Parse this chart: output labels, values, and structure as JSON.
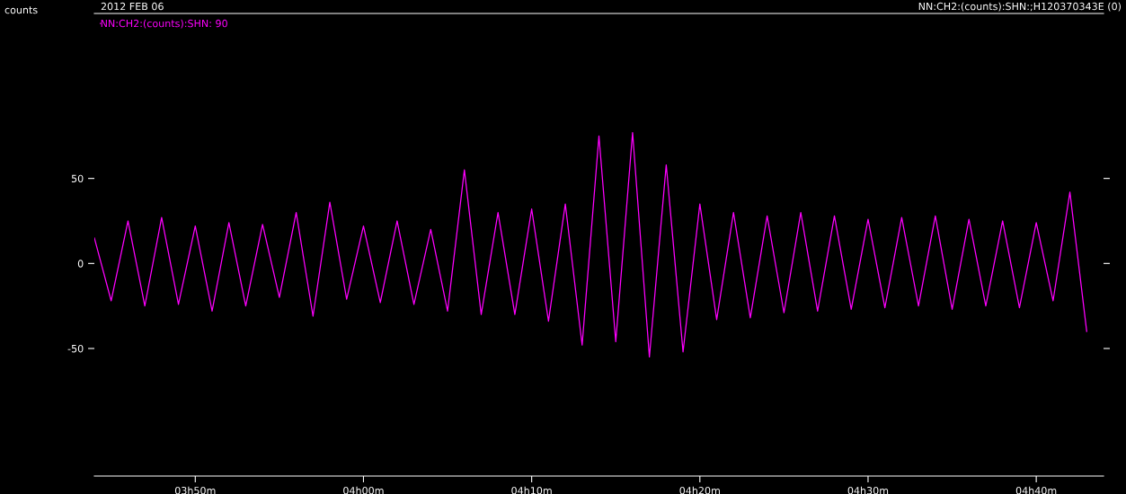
{
  "chart_data": {
    "type": "line",
    "title": "2012 FEB 06",
    "ylabel": "counts",
    "annotations": [
      "NN:CH2:(counts):SHN:;H120370343E (0)"
    ],
    "legend": "top left",
    "grid": false,
    "marker": "none",
    "line_style": "solid",
    "xlim": [
      "2012-02-06T03:44",
      "2012-02-06T04:44"
    ],
    "xticks": [
      {
        "value": "2012-02-06T03:50",
        "label": "03h50m"
      },
      {
        "value": "2012-02-06T04:00",
        "label": "04h00m"
      },
      {
        "value": "2012-02-06T04:10",
        "label": "04h10m"
      },
      {
        "value": "2012-02-06T04:20",
        "label": "04h20m"
      },
      {
        "value": "2012-02-06T04:30",
        "label": "04h30m"
      },
      {
        "value": "2012-02-06T04:40",
        "label": "04h40m"
      }
    ],
    "ylim": [
      -125,
      147
    ],
    "yticks": [
      -50,
      0,
      50
    ],
    "series": [
      {
        "name": "NN:CH2:(counts):SHN: 90",
        "color": "#ff00ff",
        "x": [
          "2012-02-06T03:44",
          "2012-02-06T03:45",
          "2012-02-06T03:46",
          "2012-02-06T03:47",
          "2012-02-06T03:48",
          "2012-02-06T03:49",
          "2012-02-06T03:50",
          "2012-02-06T03:51",
          "2012-02-06T03:52",
          "2012-02-06T03:53",
          "2012-02-06T03:54",
          "2012-02-06T03:55",
          "2012-02-06T03:56",
          "2012-02-06T03:57",
          "2012-02-06T03:58",
          "2012-02-06T03:59",
          "2012-02-06T04:00",
          "2012-02-06T04:01",
          "2012-02-06T04:02",
          "2012-02-06T04:03",
          "2012-02-06T04:04",
          "2012-02-06T04:05",
          "2012-02-06T04:06",
          "2012-02-06T04:07",
          "2012-02-06T04:08",
          "2012-02-06T04:09",
          "2012-02-06T04:10",
          "2012-02-06T04:11",
          "2012-02-06T04:12",
          "2012-02-06T04:13",
          "2012-02-06T04:14",
          "2012-02-06T04:15",
          "2012-02-06T04:16",
          "2012-02-06T04:17",
          "2012-02-06T04:18",
          "2012-02-06T04:19",
          "2012-02-06T04:20",
          "2012-02-06T04:21",
          "2012-02-06T04:22",
          "2012-02-06T04:23",
          "2012-02-06T04:24",
          "2012-02-06T04:25",
          "2012-02-06T04:26",
          "2012-02-06T04:27",
          "2012-02-06T04:28",
          "2012-02-06T04:29",
          "2012-02-06T04:30",
          "2012-02-06T04:31",
          "2012-02-06T04:32",
          "2012-02-06T04:33",
          "2012-02-06T04:34",
          "2012-02-06T04:35",
          "2012-02-06T04:36",
          "2012-02-06T04:37",
          "2012-02-06T04:38",
          "2012-02-06T04:39",
          "2012-02-06T04:40",
          "2012-02-06T04:41",
          "2012-02-06T04:42",
          "2012-02-06T04:43"
        ],
        "values": [
          15,
          -22,
          25,
          -25,
          27,
          -24,
          22,
          -28,
          24,
          -25,
          23,
          -20,
          30,
          -31,
          36,
          -21,
          22,
          -23,
          25,
          -24,
          20,
          -28,
          55,
          -30,
          30,
          -30,
          32,
          -34,
          35,
          -48,
          75,
          -46,
          77,
          -55,
          58,
          -52,
          35,
          -33,
          30,
          -32,
          28,
          -29,
          30,
          -28,
          28,
          -27,
          26,
          -26,
          27,
          -25,
          28,
          -27,
          26,
          -25,
          25,
          -26,
          24,
          -22,
          42,
          -40
        ]
      }
    ]
  }
}
